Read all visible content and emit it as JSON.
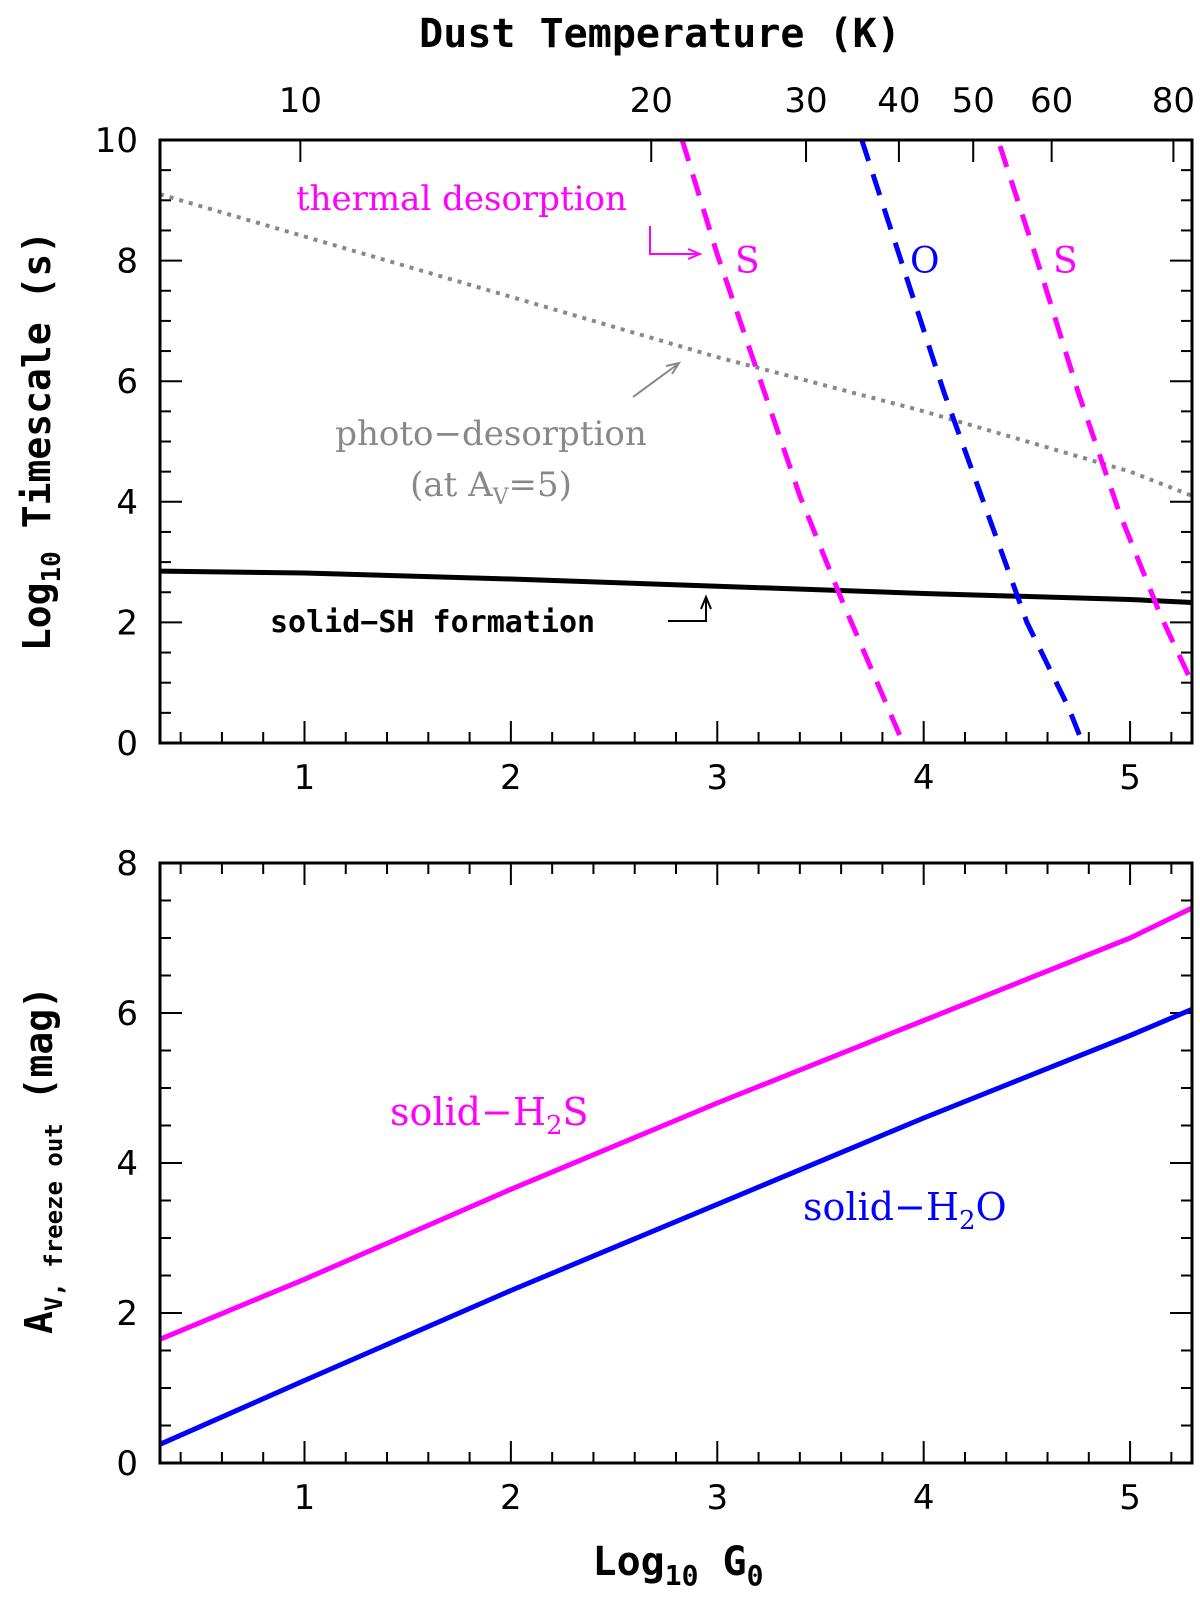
{
  "chart_data": [
    {
      "type": "line",
      "title": "Dust Temperature (K)",
      "xlabel": "Log10 G0",
      "ylabel_main": "Log",
      "ylabel_sub": "10",
      "ylabel_rest": " Timescale (s)",
      "xlim": [
        0.3,
        5.3
      ],
      "ylim": [
        0,
        10
      ],
      "x_ticks": [
        1,
        2,
        3,
        4,
        5
      ],
      "y_ticks": [
        0,
        2,
        4,
        6,
        8,
        10
      ],
      "top_axis": {
        "label": "Dust Temperature (K)",
        "ticks": [
          {
            "label": "10",
            "at_log_g0": 0.98
          },
          {
            "label": "20",
            "at_log_g0": 2.68
          },
          {
            "label": "30",
            "at_log_g0": 3.43
          },
          {
            "label": "40",
            "at_log_g0": 3.88
          },
          {
            "label": "50",
            "at_log_g0": 4.24
          },
          {
            "label": "60",
            "at_log_g0": 4.62
          },
          {
            "label": "80",
            "at_log_g0": 5.21
          }
        ]
      },
      "series": [
        {
          "name": "solid-SH formation",
          "color": "#000000",
          "style": "solid",
          "x": [
            0.3,
            1.0,
            2.0,
            3.0,
            4.0,
            5.0,
            5.3
          ],
          "y": [
            2.85,
            2.82,
            2.72,
            2.6,
            2.48,
            2.38,
            2.33
          ]
        },
        {
          "name": "photo-desorption (at AV=5)",
          "color": "#888888",
          "style": "dotted",
          "x": [
            0.3,
            1.0,
            2.0,
            3.0,
            4.0,
            5.0,
            5.3
          ],
          "y": [
            9.1,
            8.4,
            7.4,
            6.4,
            5.5,
            4.5,
            4.1
          ]
        },
        {
          "name": "S thermal desorption (low T)",
          "color": "#ff00ff",
          "style": "dashed",
          "x": [
            2.83,
            3.0,
            3.2,
            3.4,
            3.6,
            3.8,
            3.9
          ],
          "y": [
            10,
            8.1,
            6.1,
            4.1,
            2.4,
            0.8,
            0
          ]
        },
        {
          "name": "O thermal desorption",
          "color": "#0000ff",
          "style": "dashed",
          "x": [
            3.7,
            3.9,
            4.1,
            4.3,
            4.5,
            4.7,
            4.77
          ],
          "y": [
            10,
            7.9,
            5.8,
            3.9,
            2.0,
            0.6,
            0
          ]
        },
        {
          "name": "S thermal desorption (high T)",
          "color": "#ff00ff",
          "style": "dashed",
          "x": [
            4.37,
            4.55,
            4.75,
            4.95,
            5.15,
            5.3
          ],
          "y": [
            9.9,
            8.0,
            5.8,
            3.8,
            2.1,
            1.0
          ]
        }
      ],
      "annotations": {
        "thermal": "thermal desorption",
        "s_left": "S",
        "o_mid": "O",
        "s_right": "S",
        "photo_line1": "photo−desorption",
        "photo_line2_a": "(at A",
        "photo_line2_sub": "V",
        "photo_line2_b": "=5)",
        "sh_formation": "solid−SH formation"
      }
    },
    {
      "type": "line",
      "xlabel_main": "Log",
      "xlabel_sub": "10",
      "xlabel_rest": " G",
      "xlabel_sub2": "0",
      "ylabel_main": "A",
      "ylabel_sub": "V, freeze out",
      "ylabel_rest": " (mag)",
      "xlim": [
        0.3,
        5.3
      ],
      "ylim": [
        0,
        8
      ],
      "x_ticks": [
        1,
        2,
        3,
        4,
        5
      ],
      "y_ticks": [
        0,
        2,
        4,
        6,
        8
      ],
      "series": [
        {
          "name": "solid-H2S",
          "color": "#ff00ff",
          "x": [
            0.3,
            1.0,
            2.0,
            3.0,
            4.0,
            5.0,
            5.3
          ],
          "y": [
            1.65,
            2.45,
            3.65,
            4.8,
            5.9,
            7.0,
            7.4
          ]
        },
        {
          "name": "solid-H2O",
          "color": "#0000ff",
          "x": [
            0.3,
            1.0,
            2.0,
            3.0,
            4.0,
            5.0,
            5.3
          ],
          "y": [
            0.25,
            1.1,
            2.3,
            3.45,
            4.6,
            5.7,
            6.05
          ]
        }
      ],
      "annotations": {
        "h2s_a": "solid−H",
        "h2s_sub": "2",
        "h2s_b": "S",
        "h2o_a": "solid−H",
        "h2o_sub": "2",
        "h2o_b": "O"
      }
    }
  ]
}
